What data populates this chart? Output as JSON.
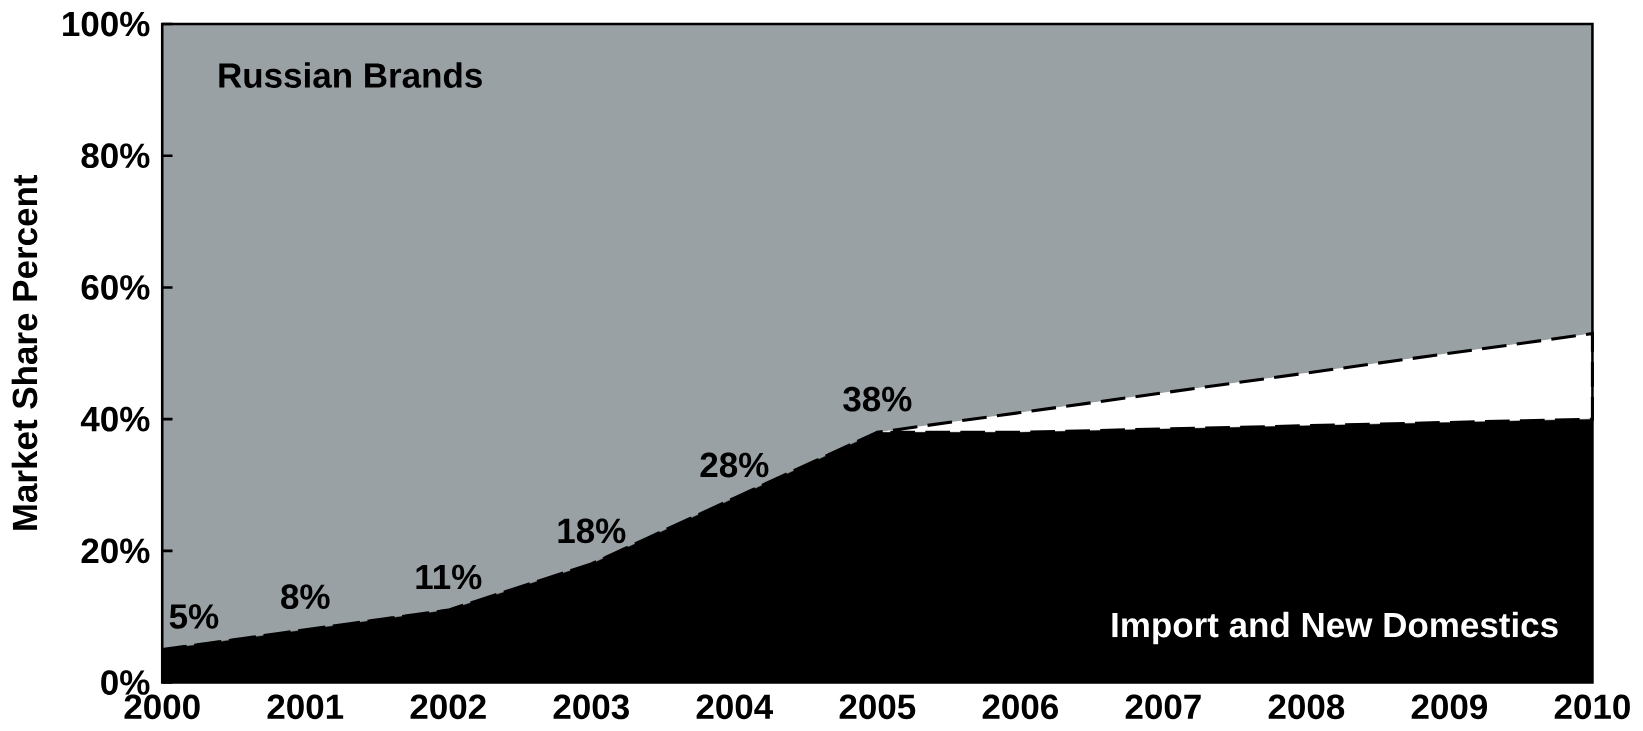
{
  "chart_data": {
    "type": "area",
    "stacked": true,
    "ylabel": "Market Share Percent",
    "categories": [
      "2000",
      "2001",
      "2002",
      "2003",
      "2004",
      "2005",
      "2006",
      "2007",
      "2008",
      "2009",
      "2010"
    ],
    "series": [
      {
        "name": "Import and New Domestics",
        "color": "#000000",
        "values": [
          5,
          8,
          11,
          18,
          28,
          38,
          38,
          38.5,
          39,
          39.5,
          40
        ],
        "value_labels": [
          "5%",
          "8%",
          "11%",
          "18%",
          "28%",
          "38%",
          null,
          null,
          null,
          null,
          null
        ]
      },
      {
        "color": "#ffffff",
        "line_style": "dashed",
        "values": [
          0,
          0,
          0,
          0,
          0,
          0,
          3,
          5.5,
          8,
          10.5,
          13
        ]
      },
      {
        "name": "Russian Brands",
        "color": "#9aa1a5",
        "values": [
          95,
          92,
          89,
          82,
          72,
          62,
          59,
          56,
          53,
          50,
          47
        ]
      }
    ],
    "ylim": [
      0,
      100
    ],
    "yticks": [
      {
        "value": 0,
        "label": "0%"
      },
      {
        "value": 20,
        "label": "20%"
      },
      {
        "value": 40,
        "label": "40%"
      },
      {
        "value": 60,
        "label": "60%"
      },
      {
        "value": 80,
        "label": "80%"
      },
      {
        "value": 100,
        "label": "100%"
      }
    ]
  }
}
